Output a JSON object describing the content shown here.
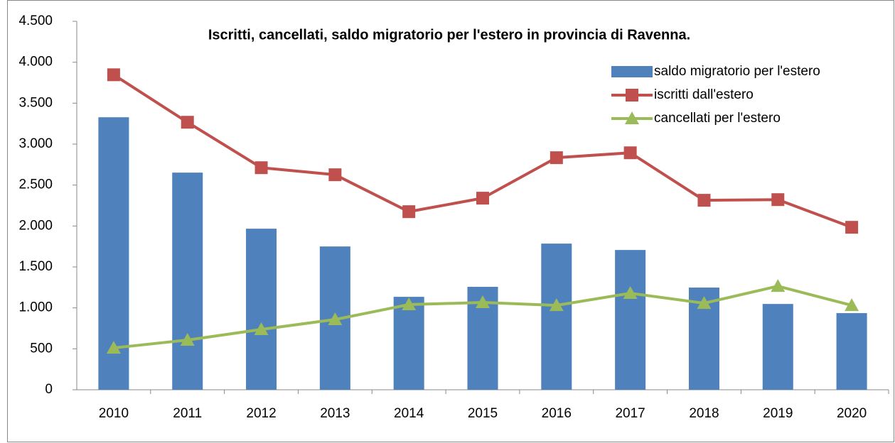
{
  "chart_data": {
    "type": "bar",
    "title": "Iscritti, cancellati, saldo migratorio per l'estero in provincia di Ravenna.",
    "categories": [
      "2010",
      "2011",
      "2012",
      "2013",
      "2014",
      "2015",
      "2016",
      "2017",
      "2018",
      "2019",
      "2020"
    ],
    "series": [
      {
        "name": "saldo migratorio per l'estero",
        "type": "bar",
        "color": "#4f81bd",
        "values": [
          3328,
          2652,
          1967,
          1750,
          1135,
          1257,
          1785,
          1707,
          1248,
          1048,
          936
        ]
      },
      {
        "name": "iscritti dall'estero",
        "type": "line",
        "marker": "square",
        "color": "#c0504d",
        "values": [
          3847,
          3267,
          2712,
          2626,
          2175,
          2340,
          2834,
          2894,
          2314,
          2322,
          1984
        ]
      },
      {
        "name": "cancellati per l'estero",
        "type": "line",
        "marker": "triangle",
        "color": "#9bbb59",
        "values": [
          511,
          607,
          737,
          858,
          1040,
          1066,
          1031,
          1179,
          1057,
          1265,
          1031
        ]
      }
    ],
    "ylim": [
      0,
      4500
    ],
    "yticks": [
      0,
      500,
      {
        "value": 1000,
        "label": "1.000"
      },
      {
        "value": 1500,
        "label": "1.500"
      },
      {
        "value": 2000,
        "label": "2.000"
      },
      {
        "value": 2500,
        "label": "2.500"
      },
      {
        "value": 3000,
        "label": "3.000"
      },
      {
        "value": 3500,
        "label": "3.500"
      },
      {
        "value": 4000,
        "label": "4.000"
      },
      {
        "value": 4500,
        "label": "4.500"
      }
    ],
    "legend": "top-right",
    "grid": false
  }
}
